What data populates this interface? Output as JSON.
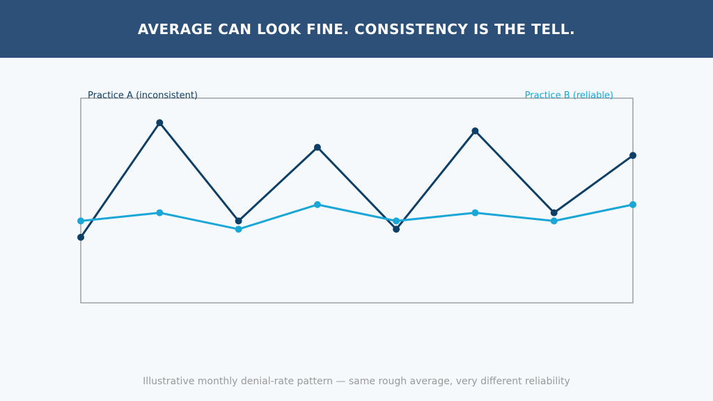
{
  "header": {
    "title": "AVERAGE CAN LOOK FINE. CONSISTENCY IS THE TELL."
  },
  "caption": "Illustrative monthly denial-rate pattern — same rough average, very different reliability",
  "colors": {
    "header_bg": "#2c5077",
    "page_bg": "#f5f9fc",
    "series_a": "#0e3f66",
    "series_b": "#1aa7d8",
    "frame": "#8a8a8a"
  },
  "chart_data": {
    "type": "line",
    "x": [
      1,
      2,
      3,
      4,
      5,
      6,
      7,
      8
    ],
    "ylim": [
      0,
      25
    ],
    "grid": false,
    "legend_placement": "top",
    "series": [
      {
        "name": "Practice A (inconsistent)",
        "values": [
          8,
          22,
          10,
          19,
          9,
          21,
          11,
          18
        ]
      },
      {
        "name": "Practice B (reliable)",
        "values": [
          10,
          11,
          9,
          12,
          10,
          11,
          10,
          12
        ]
      }
    ]
  }
}
